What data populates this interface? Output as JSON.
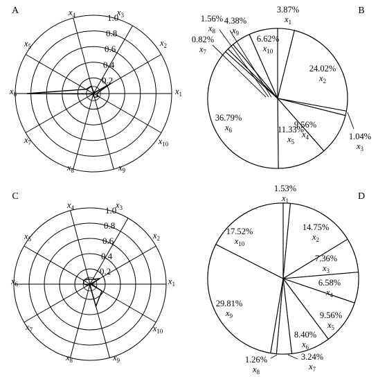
{
  "chart_data": [
    {
      "panel": "A",
      "type": "radar",
      "axes": [
        "x1",
        "x2",
        "x3",
        "x4",
        "x5",
        "x6",
        "x7",
        "x8",
        "x9",
        "x10"
      ],
      "rings": [
        0.2,
        0.4,
        0.6,
        0.8,
        1.0
      ],
      "tick_labels": [
        "0.2",
        "0.4",
        "0.6",
        "0.8",
        "1.0"
      ],
      "values": [
        0.04,
        0.25,
        0.01,
        0.1,
        0.11,
        0.85,
        0.01,
        0.02,
        0.05,
        0.07
      ]
    },
    {
      "panel": "B",
      "type": "pie",
      "slices": [
        {
          "var": "x1",
          "pct": "3.87%",
          "value": 3.87
        },
        {
          "var": "x2",
          "pct": "24.02%",
          "value": 24.02
        },
        {
          "var": "x3",
          "pct": "1.04%",
          "value": 1.04
        },
        {
          "var": "x4",
          "pct": "9.56%",
          "value": 9.56
        },
        {
          "var": "x5",
          "pct": "11.33%",
          "value": 11.33
        },
        {
          "var": "x6",
          "pct": "36.79%",
          "value": 36.79
        },
        {
          "var": "x7",
          "pct": "0.82%",
          "value": 0.82
        },
        {
          "var": "x8",
          "pct": "1.56%",
          "value": 1.56
        },
        {
          "var": "x9",
          "pct": "4.38%",
          "value": 4.38
        },
        {
          "var": "x10",
          "pct": "6.62%",
          "value": 6.62
        }
      ]
    },
    {
      "panel": "C",
      "type": "radar",
      "axes": [
        "x1",
        "x2",
        "x3",
        "x4",
        "x5",
        "x6",
        "x7",
        "x8",
        "x9",
        "x10"
      ],
      "rings": [
        0.2,
        0.4,
        0.6,
        0.8,
        1.0
      ],
      "tick_labels": [
        "0.2",
        "0.4",
        "0.6",
        "0.8",
        "1.0"
      ],
      "values": [
        0.02,
        0.15,
        0.07,
        0.07,
        0.1,
        0.08,
        0.03,
        0.01,
        0.3,
        0.18
      ]
    },
    {
      "panel": "D",
      "type": "pie",
      "slices": [
        {
          "var": "x1",
          "pct": "1.53%",
          "value": 1.53
        },
        {
          "var": "x2",
          "pct": "14.75%",
          "value": 14.75
        },
        {
          "var": "x3",
          "pct": "7.36%",
          "value": 7.36
        },
        {
          "var": "x4",
          "pct": "6.58%",
          "value": 6.58
        },
        {
          "var": "x5",
          "pct": "9.56%",
          "value": 9.56
        },
        {
          "var": "x6",
          "pct": "8.40%",
          "value": 8.4
        },
        {
          "var": "x7",
          "pct": "3.24%",
          "value": 3.24
        },
        {
          "var": "x8",
          "pct": "1.26%",
          "value": 1.26
        },
        {
          "var": "x9",
          "pct": "29.81%",
          "value": 29.81
        },
        {
          "var": "x10",
          "pct": "17.52%",
          "value": 17.52
        }
      ]
    }
  ]
}
